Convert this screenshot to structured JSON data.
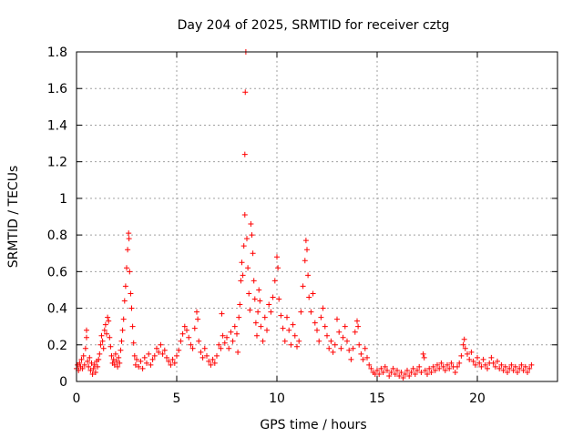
{
  "chart_data": {
    "type": "scatter",
    "title": "Day 204 of 2025, SRMTID for receiver cztg",
    "xlabel": "GPS time / hours",
    "ylabel": "SRMTID / TECUs",
    "xlim": [
      0,
      24
    ],
    "ylim": [
      0,
      1.8
    ],
    "xticks": [
      0,
      5,
      10,
      15,
      20
    ],
    "xtick_labels": [
      "0",
      "5",
      "10",
      "15",
      "20"
    ],
    "yticks": [
      0,
      0.2,
      0.4,
      0.6,
      0.8,
      1,
      1.2,
      1.4,
      1.6,
      1.8
    ],
    "ytick_labels": [
      "0",
      "0.2",
      "0.4",
      "0.6",
      "0.8",
      "1",
      "1.2",
      "1.4",
      "1.6",
      "1.8"
    ],
    "grid": true,
    "marker": "+",
    "series_color": "#ff0000",
    "series": [
      {
        "name": "SRMTID",
        "points": [
          [
            0.0,
            0.07
          ],
          [
            0.05,
            0.09
          ],
          [
            0.1,
            0.06
          ],
          [
            0.15,
            0.1
          ],
          [
            0.2,
            0.08
          ],
          [
            0.25,
            0.12
          ],
          [
            0.3,
            0.07
          ],
          [
            0.35,
            0.14
          ],
          [
            0.4,
            0.09
          ],
          [
            0.45,
            0.18
          ],
          [
            0.5,
            0.28
          ],
          [
            0.5,
            0.24
          ],
          [
            0.55,
            0.11
          ],
          [
            0.6,
            0.08
          ],
          [
            0.65,
            0.13
          ],
          [
            0.7,
            0.06
          ],
          [
            0.75,
            0.1
          ],
          [
            0.8,
            0.04
          ],
          [
            0.85,
            0.07
          ],
          [
            0.9,
            0.09
          ],
          [
            0.95,
            0.05
          ],
          [
            1.0,
            0.11
          ],
          [
            1.05,
            0.08
          ],
          [
            1.1,
            0.12
          ],
          [
            1.15,
            0.15
          ],
          [
            1.2,
            0.2
          ],
          [
            1.25,
            0.25
          ],
          [
            1.3,
            0.22
          ],
          [
            1.35,
            0.18
          ],
          [
            1.4,
            0.28
          ],
          [
            1.45,
            0.31
          ],
          [
            1.5,
            0.26
          ],
          [
            1.55,
            0.35
          ],
          [
            1.6,
            0.33
          ],
          [
            1.65,
            0.24
          ],
          [
            1.7,
            0.19
          ],
          [
            1.75,
            0.14
          ],
          [
            1.8,
            0.1
          ],
          [
            1.85,
            0.12
          ],
          [
            1.9,
            0.09
          ],
          [
            1.95,
            0.15
          ],
          [
            2.0,
            0.11
          ],
          [
            2.05,
            0.08
          ],
          [
            2.1,
            0.13
          ],
          [
            2.15,
            0.1
          ],
          [
            2.2,
            0.17
          ],
          [
            2.25,
            0.22
          ],
          [
            2.3,
            0.28
          ],
          [
            2.35,
            0.34
          ],
          [
            2.4,
            0.44
          ],
          [
            2.45,
            0.52
          ],
          [
            2.5,
            0.62
          ],
          [
            2.55,
            0.72
          ],
          [
            2.6,
            0.81
          ],
          [
            2.62,
            0.78
          ],
          [
            2.65,
            0.6
          ],
          [
            2.7,
            0.48
          ],
          [
            2.75,
            0.4
          ],
          [
            2.8,
            0.3
          ],
          [
            2.85,
            0.21
          ],
          [
            2.9,
            0.14
          ],
          [
            2.95,
            0.09
          ],
          [
            3.0,
            0.12
          ],
          [
            3.1,
            0.08
          ],
          [
            3.2,
            0.11
          ],
          [
            3.3,
            0.07
          ],
          [
            3.4,
            0.13
          ],
          [
            3.5,
            0.1
          ],
          [
            3.6,
            0.15
          ],
          [
            3.7,
            0.09
          ],
          [
            3.8,
            0.12
          ],
          [
            3.9,
            0.14
          ],
          [
            4.0,
            0.18
          ],
          [
            4.1,
            0.16
          ],
          [
            4.2,
            0.2
          ],
          [
            4.3,
            0.15
          ],
          [
            4.4,
            0.17
          ],
          [
            4.5,
            0.13
          ],
          [
            4.6,
            0.11
          ],
          [
            4.7,
            0.09
          ],
          [
            4.8,
            0.12
          ],
          [
            4.9,
            0.1
          ],
          [
            5.0,
            0.14
          ],
          [
            5.1,
            0.17
          ],
          [
            5.2,
            0.22
          ],
          [
            5.3,
            0.26
          ],
          [
            5.4,
            0.3
          ],
          [
            5.5,
            0.28
          ],
          [
            5.6,
            0.24
          ],
          [
            5.7,
            0.2
          ],
          [
            5.8,
            0.18
          ],
          [
            5.9,
            0.29
          ],
          [
            6.0,
            0.38
          ],
          [
            6.05,
            0.34
          ],
          [
            6.1,
            0.22
          ],
          [
            6.2,
            0.16
          ],
          [
            6.3,
            0.13
          ],
          [
            6.4,
            0.18
          ],
          [
            6.5,
            0.14
          ],
          [
            6.6,
            0.11
          ],
          [
            6.7,
            0.09
          ],
          [
            6.8,
            0.12
          ],
          [
            6.9,
            0.1
          ],
          [
            7.0,
            0.14
          ],
          [
            7.1,
            0.2
          ],
          [
            7.2,
            0.18
          ],
          [
            7.25,
            0.37
          ],
          [
            7.3,
            0.25
          ],
          [
            7.4,
            0.21
          ],
          [
            7.5,
            0.24
          ],
          [
            7.6,
            0.18
          ],
          [
            7.7,
            0.27
          ],
          [
            7.8,
            0.22
          ],
          [
            7.9,
            0.3
          ],
          [
            8.0,
            0.26
          ],
          [
            8.05,
            0.16
          ],
          [
            8.1,
            0.35
          ],
          [
            8.15,
            0.42
          ],
          [
            8.2,
            0.55
          ],
          [
            8.25,
            0.65
          ],
          [
            8.3,
            0.58
          ],
          [
            8.35,
            0.74
          ],
          [
            8.4,
            0.91
          ],
          [
            8.4,
            1.24
          ],
          [
            8.42,
            1.58
          ],
          [
            8.45,
            1.8
          ],
          [
            8.5,
            0.78
          ],
          [
            8.55,
            0.62
          ],
          [
            8.6,
            0.48
          ],
          [
            8.65,
            0.39
          ],
          [
            8.7,
            0.86
          ],
          [
            8.75,
            0.8
          ],
          [
            8.8,
            0.7
          ],
          [
            8.85,
            0.55
          ],
          [
            8.9,
            0.45
          ],
          [
            8.95,
            0.32
          ],
          [
            9.0,
            0.25
          ],
          [
            9.05,
            0.38
          ],
          [
            9.1,
            0.5
          ],
          [
            9.15,
            0.44
          ],
          [
            9.2,
            0.3
          ],
          [
            9.3,
            0.22
          ],
          [
            9.4,
            0.35
          ],
          [
            9.5,
            0.28
          ],
          [
            9.6,
            0.42
          ],
          [
            9.7,
            0.38
          ],
          [
            9.8,
            0.46
          ],
          [
            9.9,
            0.55
          ],
          [
            10.0,
            0.68
          ],
          [
            10.05,
            0.62
          ],
          [
            10.1,
            0.45
          ],
          [
            10.2,
            0.36
          ],
          [
            10.3,
            0.29
          ],
          [
            10.4,
            0.22
          ],
          [
            10.5,
            0.35
          ],
          [
            10.6,
            0.28
          ],
          [
            10.7,
            0.2
          ],
          [
            10.8,
            0.31
          ],
          [
            10.9,
            0.25
          ],
          [
            11.0,
            0.19
          ],
          [
            11.1,
            0.22
          ],
          [
            11.2,
            0.38
          ],
          [
            11.3,
            0.52
          ],
          [
            11.4,
            0.66
          ],
          [
            11.45,
            0.77
          ],
          [
            11.5,
            0.72
          ],
          [
            11.55,
            0.58
          ],
          [
            11.6,
            0.46
          ],
          [
            11.7,
            0.38
          ],
          [
            11.8,
            0.48
          ],
          [
            11.9,
            0.32
          ],
          [
            12.0,
            0.28
          ],
          [
            12.1,
            0.22
          ],
          [
            12.2,
            0.35
          ],
          [
            12.3,
            0.4
          ],
          [
            12.4,
            0.3
          ],
          [
            12.5,
            0.25
          ],
          [
            12.6,
            0.18
          ],
          [
            12.7,
            0.22
          ],
          [
            12.8,
            0.16
          ],
          [
            12.9,
            0.2
          ],
          [
            13.0,
            0.34
          ],
          [
            13.1,
            0.27
          ],
          [
            13.2,
            0.18
          ],
          [
            13.3,
            0.24
          ],
          [
            13.4,
            0.3
          ],
          [
            13.5,
            0.22
          ],
          [
            13.6,
            0.17
          ],
          [
            13.7,
            0.12
          ],
          [
            13.8,
            0.18
          ],
          [
            13.9,
            0.27
          ],
          [
            14.0,
            0.33
          ],
          [
            14.05,
            0.3
          ],
          [
            14.1,
            0.2
          ],
          [
            14.2,
            0.15
          ],
          [
            14.3,
            0.12
          ],
          [
            14.4,
            0.18
          ],
          [
            14.5,
            0.13
          ],
          [
            14.6,
            0.09
          ],
          [
            14.7,
            0.07
          ],
          [
            14.8,
            0.05
          ],
          [
            14.9,
            0.04
          ],
          [
            15.0,
            0.06
          ],
          [
            15.1,
            0.04
          ],
          [
            15.2,
            0.07
          ],
          [
            15.3,
            0.05
          ],
          [
            15.4,
            0.08
          ],
          [
            15.5,
            0.06
          ],
          [
            15.6,
            0.03
          ],
          [
            15.7,
            0.05
          ],
          [
            15.8,
            0.07
          ],
          [
            15.9,
            0.04
          ],
          [
            16.0,
            0.06
          ],
          [
            16.1,
            0.03
          ],
          [
            16.2,
            0.05
          ],
          [
            16.3,
            0.02
          ],
          [
            16.4,
            0.04
          ],
          [
            16.5,
            0.06
          ],
          [
            16.6,
            0.03
          ],
          [
            16.7,
            0.05
          ],
          [
            16.8,
            0.07
          ],
          [
            16.9,
            0.04
          ],
          [
            17.0,
            0.06
          ],
          [
            17.1,
            0.08
          ],
          [
            17.2,
            0.05
          ],
          [
            17.3,
            0.15
          ],
          [
            17.35,
            0.13
          ],
          [
            17.4,
            0.06
          ],
          [
            17.5,
            0.04
          ],
          [
            17.6,
            0.07
          ],
          [
            17.7,
            0.05
          ],
          [
            17.8,
            0.08
          ],
          [
            17.9,
            0.06
          ],
          [
            18.0,
            0.09
          ],
          [
            18.1,
            0.07
          ],
          [
            18.2,
            0.1
          ],
          [
            18.3,
            0.08
          ],
          [
            18.4,
            0.06
          ],
          [
            18.5,
            0.09
          ],
          [
            18.6,
            0.07
          ],
          [
            18.7,
            0.1
          ],
          [
            18.8,
            0.08
          ],
          [
            18.9,
            0.05
          ],
          [
            19.0,
            0.08
          ],
          [
            19.1,
            0.1
          ],
          [
            19.2,
            0.14
          ],
          [
            19.3,
            0.2
          ],
          [
            19.35,
            0.23
          ],
          [
            19.4,
            0.18
          ],
          [
            19.5,
            0.15
          ],
          [
            19.6,
            0.12
          ],
          [
            19.7,
            0.16
          ],
          [
            19.8,
            0.11
          ],
          [
            19.9,
            0.09
          ],
          [
            20.0,
            0.13
          ],
          [
            20.1,
            0.1
          ],
          [
            20.2,
            0.08
          ],
          [
            20.3,
            0.12
          ],
          [
            20.4,
            0.09
          ],
          [
            20.5,
            0.07
          ],
          [
            20.6,
            0.1
          ],
          [
            20.7,
            0.13
          ],
          [
            20.8,
            0.1
          ],
          [
            20.9,
            0.08
          ],
          [
            21.0,
            0.11
          ],
          [
            21.1,
            0.07
          ],
          [
            21.2,
            0.09
          ],
          [
            21.3,
            0.06
          ],
          [
            21.4,
            0.08
          ],
          [
            21.5,
            0.05
          ],
          [
            21.6,
            0.07
          ],
          [
            21.7,
            0.09
          ],
          [
            21.8,
            0.06
          ],
          [
            21.9,
            0.08
          ],
          [
            22.0,
            0.05
          ],
          [
            22.1,
            0.07
          ],
          [
            22.2,
            0.09
          ],
          [
            22.3,
            0.06
          ],
          [
            22.4,
            0.08
          ],
          [
            22.5,
            0.05
          ],
          [
            22.6,
            0.07
          ],
          [
            22.7,
            0.09
          ]
        ]
      }
    ]
  }
}
